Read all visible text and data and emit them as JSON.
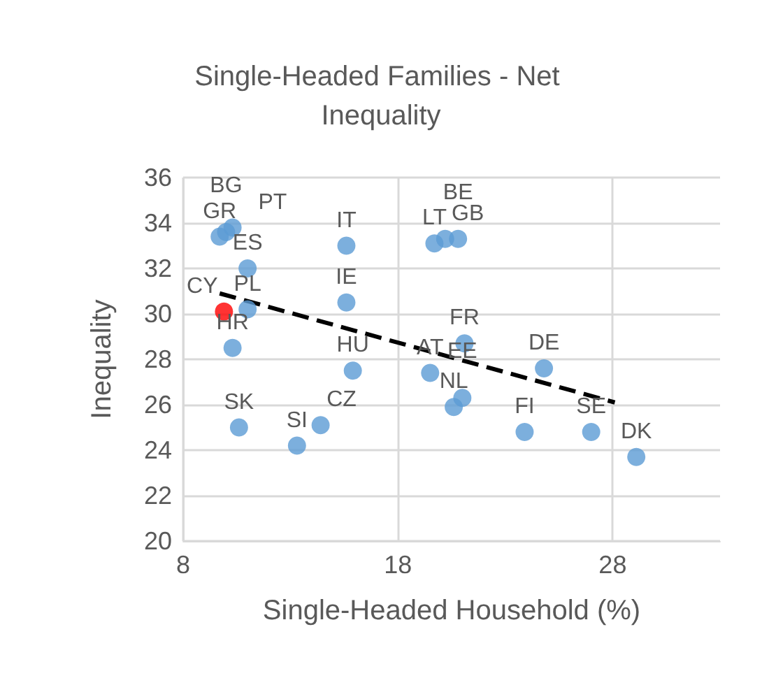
{
  "chart_data": {
    "type": "scatter",
    "title": "Single-Headed Families - Net Inequality",
    "xlabel": "Single-Headed Household (%)",
    "ylabel": "Inequality",
    "xlim": [
      8,
      33
    ],
    "xticks": [
      8,
      18,
      28
    ],
    "ylim": [
      20,
      36
    ],
    "yticks": [
      20,
      22,
      24,
      26,
      28,
      30,
      32,
      34,
      36
    ],
    "grid": true,
    "series": [
      {
        "marker": "circle",
        "x": [
          9.7,
          10.0,
          10.3,
          11.0,
          11.0,
          9.9,
          10.3,
          15.6,
          15.6,
          15.9,
          10.6,
          13.3,
          14.4,
          19.5,
          20.6,
          19.7,
          20.2,
          20.8,
          21.1,
          21.0,
          24.8,
          23.9,
          27.0,
          29.1
        ],
        "values": [
          33.4,
          33.6,
          33.8,
          32.0,
          30.2,
          30.1,
          28.5,
          33.0,
          30.5,
          27.5,
          25.0,
          24.2,
          25.1,
          27.4,
          25.9,
          33.1,
          33.3,
          33.3,
          28.7,
          26.3,
          27.6,
          24.8,
          24.8,
          23.7
        ],
        "colors": [
          "#5b9bd5",
          "#5b9bd5",
          "#5b9bd5",
          "#5b9bd5",
          "#5b9bd5",
          "#ff0000",
          "#5b9bd5",
          "#5b9bd5",
          "#5b9bd5",
          "#5b9bd5",
          "#5b9bd5",
          "#5b9bd5",
          "#5b9bd5",
          "#5b9bd5",
          "#5b9bd5",
          "#5b9bd5",
          "#5b9bd5",
          "#5b9bd5",
          "#5b9bd5",
          "#5b9bd5",
          "#5b9bd5",
          "#5b9bd5",
          "#5b9bd5",
          "#5b9bd5"
        ]
      },
      {
        "type": "line",
        "color": "#000000",
        "line_style": "dashed",
        "marker": "none",
        "x": [
          9.7,
          28.1
        ],
        "values": [
          30.9,
          26.1
        ]
      }
    ],
    "annotations": [
      {
        "text": "GR",
        "x": 9.7,
        "y": 33.4
      },
      {
        "text": "BG",
        "x": 10.0,
        "y": 33.6
      },
      {
        "text": "PT",
        "x": 10.3,
        "y": 33.8
      },
      {
        "text": "ES",
        "x": 11.0,
        "y": 32.0
      },
      {
        "text": "PL",
        "x": 11.0,
        "y": 30.2
      },
      {
        "text": "CY",
        "x": 9.9,
        "y": 30.1
      },
      {
        "text": "HR",
        "x": 10.3,
        "y": 28.5
      },
      {
        "text": "IT",
        "x": 15.6,
        "y": 33.0
      },
      {
        "text": "IE",
        "x": 15.6,
        "y": 30.5
      },
      {
        "text": "HU",
        "x": 15.9,
        "y": 27.5
      },
      {
        "text": "SK",
        "x": 10.6,
        "y": 25.0
      },
      {
        "text": "SI",
        "x": 13.3,
        "y": 24.2
      },
      {
        "text": "CZ",
        "x": 14.4,
        "y": 25.1
      },
      {
        "text": "AT",
        "x": 19.5,
        "y": 27.4
      },
      {
        "text": "NL",
        "x": 20.6,
        "y": 25.9
      },
      {
        "text": "LT",
        "x": 19.7,
        "y": 33.1
      },
      {
        "text": "GB",
        "x": 20.2,
        "y": 33.3
      },
      {
        "text": "BE",
        "x": 20.8,
        "y": 33.3
      },
      {
        "text": "FR",
        "x": 21.1,
        "y": 28.7
      },
      {
        "text": "EE",
        "x": 21.0,
        "y": 26.3
      },
      {
        "text": "DE",
        "x": 24.8,
        "y": 27.6
      },
      {
        "text": "FI",
        "x": 23.9,
        "y": 24.8
      },
      {
        "text": "SE",
        "x": 27.0,
        "y": 24.8
      },
      {
        "text": "DK",
        "x": 29.1,
        "y": 23.7
      }
    ]
  }
}
